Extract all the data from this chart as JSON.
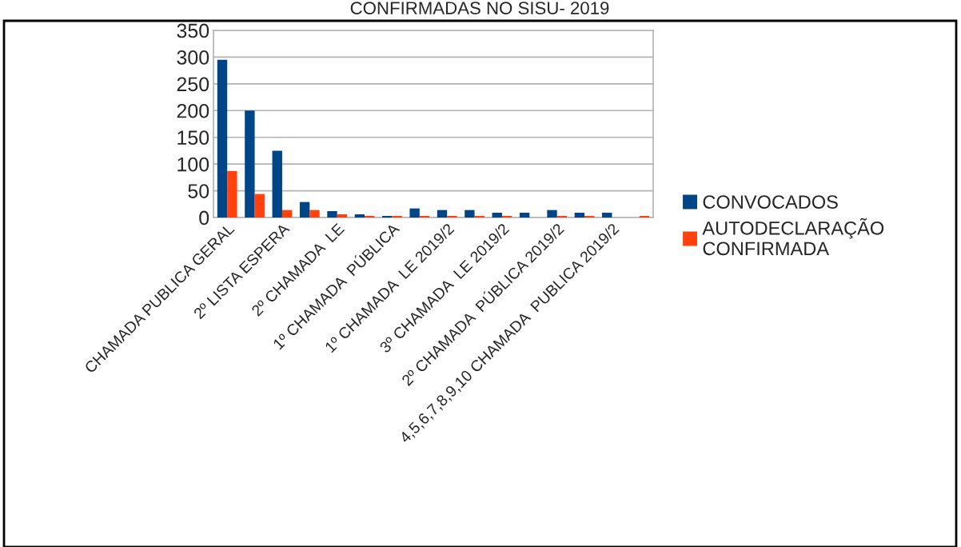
{
  "chart_data": {
    "type": "bar",
    "title": "CONFIRMADAS NO SISU- 2019",
    "categories": [
      "CHAMADA PUBLICA GERAL",
      null,
      "2º LISTA ESPERA",
      null,
      "2º CHAMADA  LE",
      null,
      "1º CHAMADA  PÚBLICA",
      null,
      "1º CHAMADA  LE 2019/2",
      null,
      "3º CHAMADA  LE 2019/2",
      null,
      "2º CHAMADA  PÚBLICA 2019/2",
      null,
      "4,5,6,7,8,9,10 CHAMADA  PUBLICA 2019/2",
      null
    ],
    "series": [
      {
        "name": "CONVOCADOS",
        "color": "#004586",
        "values": [
          295,
          200,
          125,
          29,
          12,
          6,
          3,
          17,
          14,
          14,
          9,
          9,
          14,
          9,
          9,
          null
        ]
      },
      {
        "name": "AUTODECLARAÇÃO CONFIRMADA",
        "color": "#ff420e",
        "values": [
          87,
          44,
          14,
          14,
          6,
          3,
          3,
          3,
          3,
          3,
          3,
          null,
          3,
          3,
          null,
          3
        ]
      }
    ],
    "ylim": [
      0,
      350
    ],
    "yticks": [
      0,
      50,
      100,
      150,
      200,
      250,
      300,
      350
    ],
    "grid": "y",
    "legend": "right"
  }
}
